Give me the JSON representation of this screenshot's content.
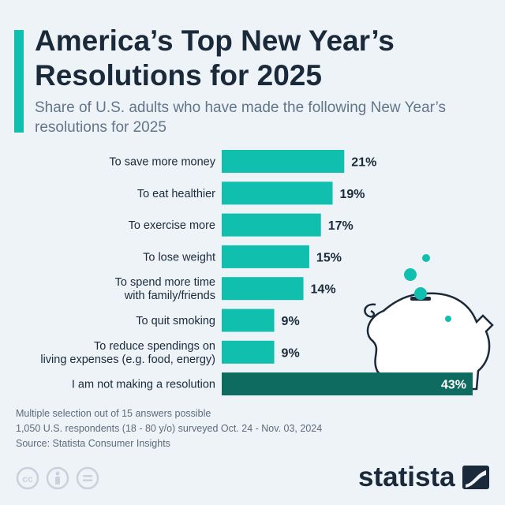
{
  "header": {
    "title": "America’s Top New Year’s Resolutions for 2025",
    "subtitle": "Share of U.S. adults who have made the following New Year’s resolutions for 2025"
  },
  "chart_data": {
    "type": "bar",
    "orientation": "horizontal",
    "title": "America’s Top New Year’s Resolutions for 2025",
    "subtitle": "Share of U.S. adults who have made the following New Year’s resolutions for 2025",
    "unit": "%",
    "categories": [
      [
        "To save more money"
      ],
      [
        "To eat healthier"
      ],
      [
        "To exercise more"
      ],
      [
        "To lose weight"
      ],
      [
        "To spend more time",
        "with family/friends"
      ],
      [
        "To quit smoking"
      ],
      [
        "To reduce spendings on",
        "living expenses (e.g. food, energy)"
      ],
      [
        "I am not making a resolution"
      ]
    ],
    "values": [
      21,
      19,
      17,
      15,
      14,
      9,
      9,
      43
    ],
    "value_labels": [
      "21%",
      "19%",
      "17%",
      "15%",
      "14%",
      "9%",
      "9%",
      "43%"
    ],
    "colors": [
      "#11bfae",
      "#11bfae",
      "#11bfae",
      "#11bfae",
      "#11bfae",
      "#11bfae",
      "#11bfae",
      "#0e6b5f"
    ],
    "grid": false,
    "legend": "none"
  },
  "footer": {
    "notes": [
      "Multiple selection out of 15 answers possible",
      "1,050 U.S. respondents (18 - 80 y/o) surveyed Oct. 24 - Nov. 03, 2024",
      "Source: Statista Consumer Insights"
    ],
    "license_icons": [
      "cc-icon",
      "by-icon",
      "nd-icon"
    ],
    "brand": "statista"
  }
}
